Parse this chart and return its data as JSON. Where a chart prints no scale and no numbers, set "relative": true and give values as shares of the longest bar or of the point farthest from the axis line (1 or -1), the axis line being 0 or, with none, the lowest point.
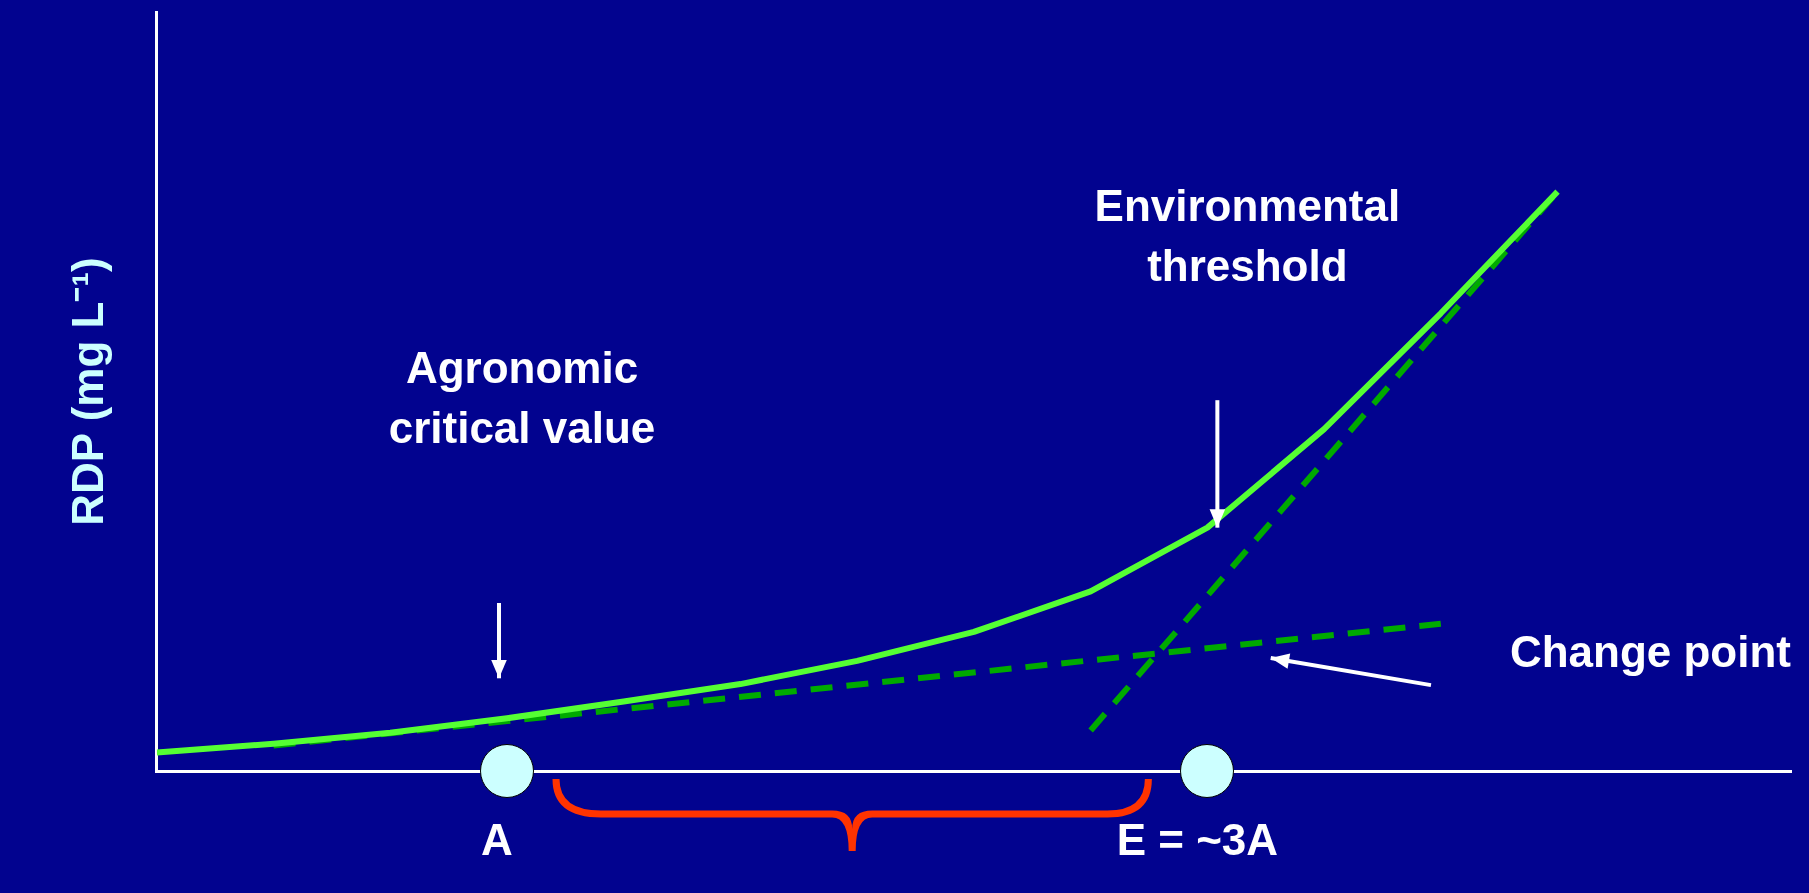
{
  "chart_data": {
    "type": "line",
    "relative": true,
    "ylabel": "RDP (mg L⁻¹)",
    "categories": [
      null,
      null,
      null,
      null,
      null,
      null,
      null,
      null,
      null,
      null,
      null,
      null,
      null,
      null,
      null
    ],
    "series": [
      {
        "color": "#55ff33",
        "line_style": "solid",
        "marker": "none",
        "values": [
          0.032,
          0.047,
          0.066,
          0.091,
          0.12,
          0.15,
          0.19,
          0.24,
          0.31,
          0.42,
          0.59,
          0.79,
          1,
          null,
          null
        ]
      },
      {
        "color": "#00aa00",
        "line_style": "dashed",
        "marker": "none",
        "values": [
          null,
          0.044,
          null,
          null,
          null,
          null,
          null,
          null,
          null,
          null,
          null,
          0.254,
          null,
          null,
          null
        ]
      },
      {
        "color": "#00aa00",
        "line_style": "dashed",
        "marker": "none",
        "values": [
          null,
          null,
          null,
          null,
          null,
          null,
          null,
          null,
          0.07,
          null,
          null,
          null,
          1,
          null,
          null
        ]
      }
    ],
    "annotations": [
      "Agronomic critical value",
      "Environmental threshold",
      "Change point",
      "A",
      "E = ~3A"
    ],
    "grid": false,
    "legend": false
  }
}
